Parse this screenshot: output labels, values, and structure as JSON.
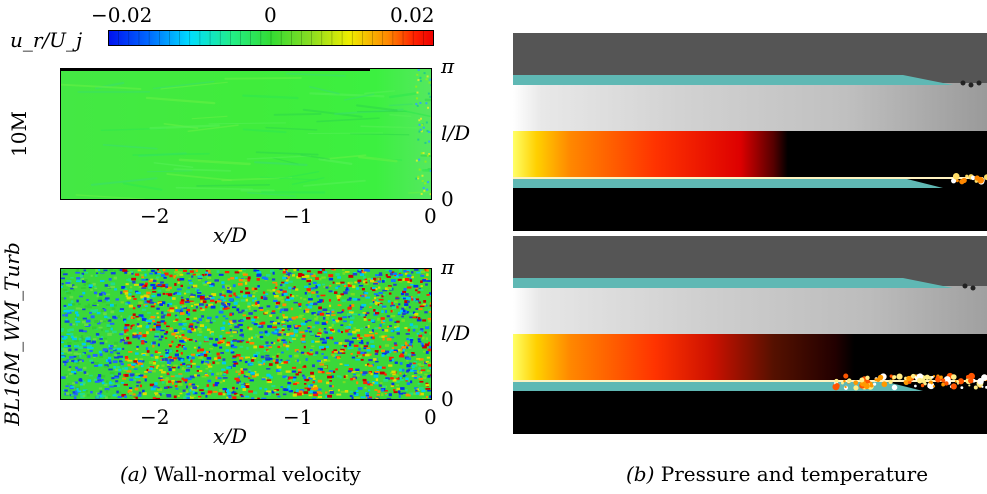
{
  "colorbar": {
    "label": "u_r/U_j",
    "ticks": [
      "−0.02",
      "0",
      "0.02"
    ],
    "range": [
      -0.02,
      0.02
    ],
    "colors": [
      "#0011ee",
      "#0066ff",
      "#00ddff",
      "#22ee88",
      "#33dd33",
      "#88dd22",
      "#eeee00",
      "#ff8800",
      "#ff2200",
      "#ee0000"
    ]
  },
  "left_panels": [
    {
      "row_label": "10M",
      "xlabel": "x/D",
      "ylabel": "l/D",
      "x_ticks": [
        "−2",
        "−1",
        "0"
      ],
      "y_ticks": [
        "π",
        "0"
      ],
      "xlim": [
        -2.8,
        0
      ],
      "ylim": [
        "0",
        "π"
      ]
    },
    {
      "row_label": "BL16M_WM_Turb",
      "xlabel": "x/D",
      "ylabel": "l/D",
      "x_ticks": [
        "−2",
        "−1",
        "0"
      ],
      "y_ticks": [
        "π",
        "0"
      ],
      "xlim": [
        -2.8,
        0
      ],
      "ylim": [
        "0",
        "π"
      ]
    }
  ],
  "captions": {
    "left_letter": "(a)",
    "left_text": " Wall-normal velocity",
    "right_letter": "(b)",
    "right_text": " Pressure and temperature"
  },
  "colors": {
    "nozzle": "#5fb8b4",
    "pressure_dark": "#555555",
    "pressure_light": "#f4f4f4",
    "temperature_hot": "#ffee44",
    "temperature_mid": "#ee2200",
    "background_black": "#000000",
    "velocity_green": "#33ee33"
  }
}
